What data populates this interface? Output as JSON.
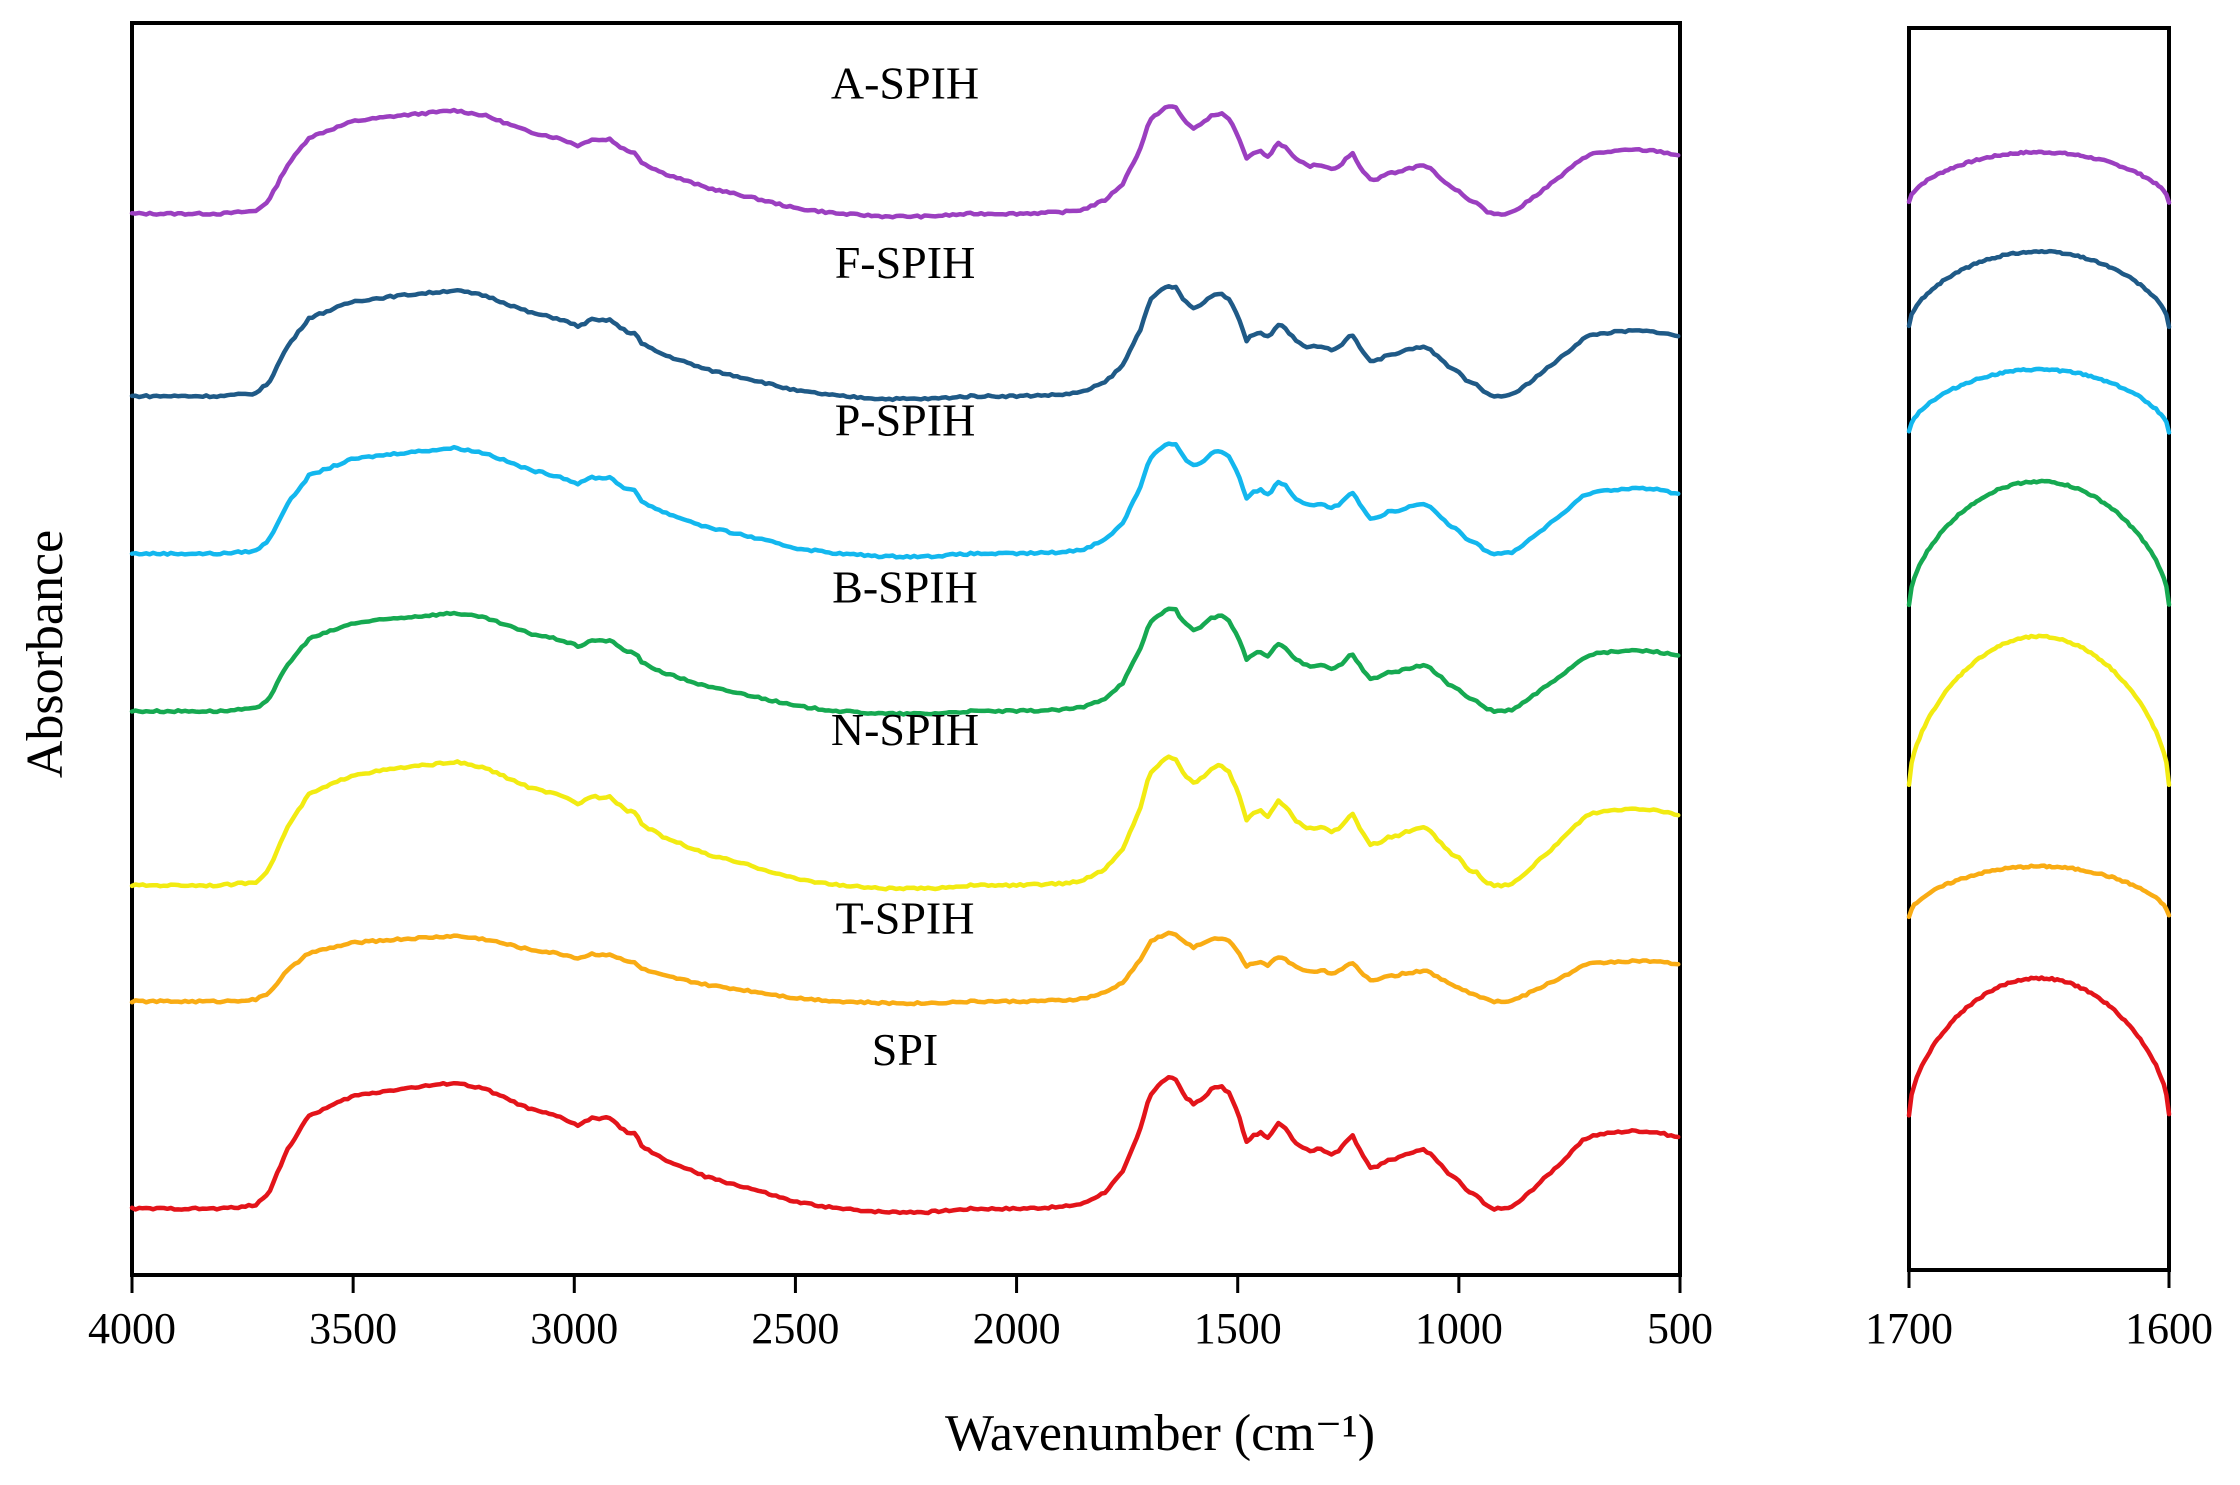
{
  "chart_data": [
    {
      "type": "line",
      "panel": "main",
      "xlabel": "Wavenumber (cm⁻¹)",
      "ylabel": "Absorbance",
      "xlim": [
        4000,
        500
      ],
      "x_reversed": true,
      "y_ticks_shown": false,
      "xticks": [
        4000,
        3500,
        3000,
        2500,
        2000,
        1500,
        1000,
        500
      ],
      "xtick_labels": [
        "4000",
        "3500",
        "3000",
        "2500",
        "2000",
        "1500",
        "1000",
        "500"
      ],
      "series": [
        {
          "name": "A-SPIH",
          "color": "#9B3FC0",
          "offset": 6.0,
          "scale": 0.82
        },
        {
          "name": "F-SPIH",
          "color": "#1F5A87",
          "offset": 4.9,
          "scale": 0.84
        },
        {
          "name": "P-SPIH",
          "color": "#13B7EE",
          "offset": 3.95,
          "scale": 0.84
        },
        {
          "name": "B-SPIH",
          "color": "#16A951",
          "offset": 3.0,
          "scale": 0.78
        },
        {
          "name": "N-SPIH",
          "color": "#F2EB12",
          "offset": 1.95,
          "scale": 0.98
        },
        {
          "name": "T-SPIH",
          "color": "#F9AC14",
          "offset": 1.25,
          "scale": 0.52
        },
        {
          "name": "SPI",
          "color": "#E3141A",
          "offset": 0.0,
          "scale": 1.0
        }
      ],
      "profile": {
        "x": [
          4000,
          3800,
          3720,
          3690,
          3650,
          3600,
          3500,
          3400,
          3300,
          3270,
          3200,
          3100,
          3070,
          3030,
          2990,
          2960,
          2940,
          2920,
          2900,
          2880,
          2860,
          2850,
          2800,
          2700,
          2600,
          2500,
          2400,
          2300,
          2200,
          2100,
          2000,
          1900,
          1850,
          1800,
          1760,
          1720,
          1700,
          1680,
          1660,
          1640,
          1620,
          1600,
          1580,
          1560,
          1540,
          1520,
          1500,
          1480,
          1470,
          1450,
          1430,
          1410,
          1395,
          1370,
          1340,
          1310,
          1290,
          1270,
          1250,
          1240,
          1220,
          1200,
          1180,
          1160,
          1140,
          1120,
          1100,
          1080,
          1060,
          1040,
          1020,
          1000,
          980,
          960,
          940,
          920,
          900,
          880,
          860,
          840,
          800,
          760,
          720,
          700,
          650,
          600,
          550,
          520,
          500
        ],
        "y": [
          0.0,
          0.0,
          0.02,
          0.1,
          0.35,
          0.56,
          0.68,
          0.72,
          0.75,
          0.76,
          0.72,
          0.6,
          0.58,
          0.55,
          0.5,
          0.55,
          0.54,
          0.55,
          0.5,
          0.46,
          0.45,
          0.38,
          0.3,
          0.19,
          0.12,
          0.04,
          0.0,
          -0.02,
          -0.02,
          0.0,
          0.0,
          0.01,
          0.03,
          0.1,
          0.22,
          0.48,
          0.68,
          0.74,
          0.79,
          0.78,
          0.68,
          0.63,
          0.66,
          0.72,
          0.74,
          0.7,
          0.58,
          0.4,
          0.43,
          0.46,
          0.42,
          0.52,
          0.5,
          0.4,
          0.35,
          0.36,
          0.33,
          0.35,
          0.42,
          0.44,
          0.33,
          0.25,
          0.26,
          0.3,
          0.3,
          0.33,
          0.34,
          0.36,
          0.32,
          0.26,
          0.2,
          0.17,
          0.1,
          0.08,
          0.02,
          0.0,
          0.0,
          0.01,
          0.05,
          0.1,
          0.2,
          0.3,
          0.41,
          0.44,
          0.46,
          0.47,
          0.46,
          0.44,
          0.43
        ]
      }
    },
    {
      "type": "line",
      "panel": "inset",
      "xlim": [
        1700,
        1600
      ],
      "x_reversed": true,
      "xticks": [
        1700,
        1600
      ],
      "xtick_labels": [
        "1700",
        "1600"
      ],
      "series": [
        {
          "name": "A-SPIH",
          "color": "#9B3FC0",
          "baseline": 0.86,
          "amplitude": 0.04
        },
        {
          "name": "F-SPIH",
          "color": "#1F5A87",
          "baseline": 0.76,
          "amplitude": 0.06
        },
        {
          "name": "P-SPIH",
          "color": "#13B7EE",
          "baseline": 0.675,
          "amplitude": 0.05
        },
        {
          "name": "B-SPIH",
          "color": "#16A951",
          "baseline": 0.535,
          "amplitude": 0.1
        },
        {
          "name": "N-SPIH",
          "color": "#F2EB12",
          "baseline": 0.39,
          "amplitude": 0.12
        },
        {
          "name": "T-SPIH",
          "color": "#F9AC14",
          "baseline": 0.285,
          "amplitude": 0.04
        },
        {
          "name": "SPI",
          "color": "#E3141A",
          "baseline": 0.125,
          "amplitude": 0.11
        }
      ]
    }
  ]
}
